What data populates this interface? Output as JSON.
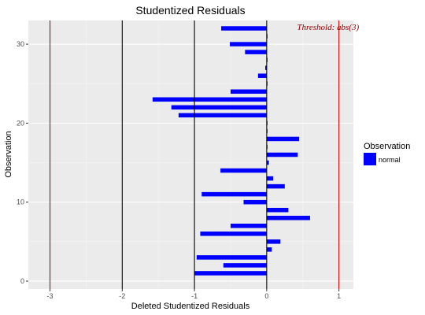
{
  "chart_data": {
    "type": "bar",
    "orientation": "horizontal",
    "title": "Studentized Residuals",
    "xlabel": "Deleted Studentized Residuals",
    "ylabel": "Observation",
    "xlim": [
      -3.3,
      1.2
    ],
    "ylim": [
      -1,
      33
    ],
    "x_ticks": [
      -3,
      -2,
      -1,
      0,
      1
    ],
    "y_ticks": [
      0,
      10,
      20,
      30
    ],
    "grid": true,
    "reference_lines": [
      {
        "x": -3,
        "color": "#cc0000"
      },
      {
        "x": -2,
        "color": "#000000"
      },
      {
        "x": -1,
        "color": "#000000"
      },
      {
        "x": 0,
        "color": "#000000"
      },
      {
        "x": 1,
        "color": "#cc0000"
      }
    ],
    "annotation": {
      "text": "Threshold: abs(3)",
      "x": 0.42,
      "y": 32.2,
      "color": "#8b0000"
    },
    "legend": {
      "title": "Observation",
      "entries": [
        {
          "label": "normal",
          "color": "#0000ff"
        }
      ],
      "placement": "right"
    },
    "series": [
      {
        "name": "normal",
        "color": "#0000ff",
        "observations": [
          1,
          2,
          3,
          4,
          5,
          6,
          7,
          8,
          9,
          10,
          11,
          12,
          13,
          14,
          15,
          16,
          17,
          18,
          19,
          20,
          21,
          22,
          23,
          24,
          25,
          26,
          27,
          28,
          29,
          30,
          31,
          32
        ],
        "values": [
          -1.0,
          -0.6,
          -0.97,
          0.07,
          0.19,
          -0.92,
          -0.5,
          0.6,
          0.3,
          -0.32,
          -0.9,
          0.25,
          0.09,
          -0.64,
          0.03,
          0.43,
          0.0,
          0.45,
          0.0,
          0.0,
          -1.22,
          -1.32,
          -1.58,
          -0.5,
          0.0,
          -0.12,
          -0.02,
          0.0,
          -0.3,
          -0.51,
          0.0,
          -0.63
        ]
      }
    ]
  }
}
